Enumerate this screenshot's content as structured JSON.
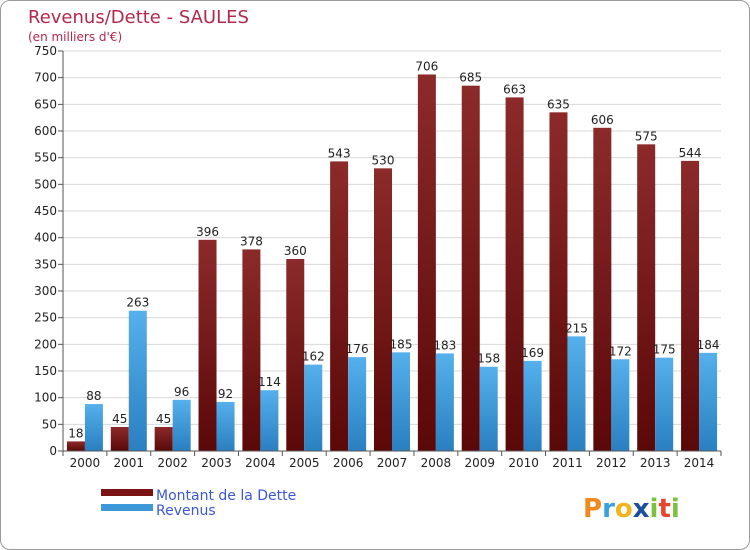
{
  "chart_data": {
    "type": "bar",
    "title": "Revenus/Dette - SAULES",
    "subtitle": "(en milliers d'€)",
    "categories": [
      "2000",
      "2001",
      "2002",
      "2003",
      "2004",
      "2005",
      "2006",
      "2007",
      "2008",
      "2009",
      "2010",
      "2011",
      "2012",
      "2013",
      "2014"
    ],
    "series": [
      {
        "name": "Montant de la Dette",
        "color": "#7a1414",
        "values": [
          18,
          45,
          45,
          396,
          378,
          360,
          543,
          530,
          706,
          685,
          663,
          635,
          606,
          575,
          544
        ]
      },
      {
        "name": "Revenus",
        "color": "#3d98d9",
        "values": [
          88,
          263,
          96,
          92,
          114,
          162,
          176,
          185,
          183,
          158,
          169,
          215,
          172,
          175,
          184
        ]
      }
    ],
    "ylim": [
      0,
      750
    ],
    "yticks": [
      0,
      50,
      100,
      150,
      200,
      250,
      300,
      350,
      400,
      450,
      500,
      550,
      600,
      650,
      700,
      750
    ],
    "grid": true,
    "legend": "bottom-left"
  },
  "brand": {
    "name": "Proxiti",
    "letters": [
      "P",
      "r",
      "o",
      "x",
      "i",
      "t",
      "i"
    ],
    "colors": [
      "#f08a1c",
      "#3aa0e0",
      "#f0b41c",
      "#1a4fa0",
      "#7cc142",
      "#e8462a",
      "#7cc142"
    ]
  }
}
